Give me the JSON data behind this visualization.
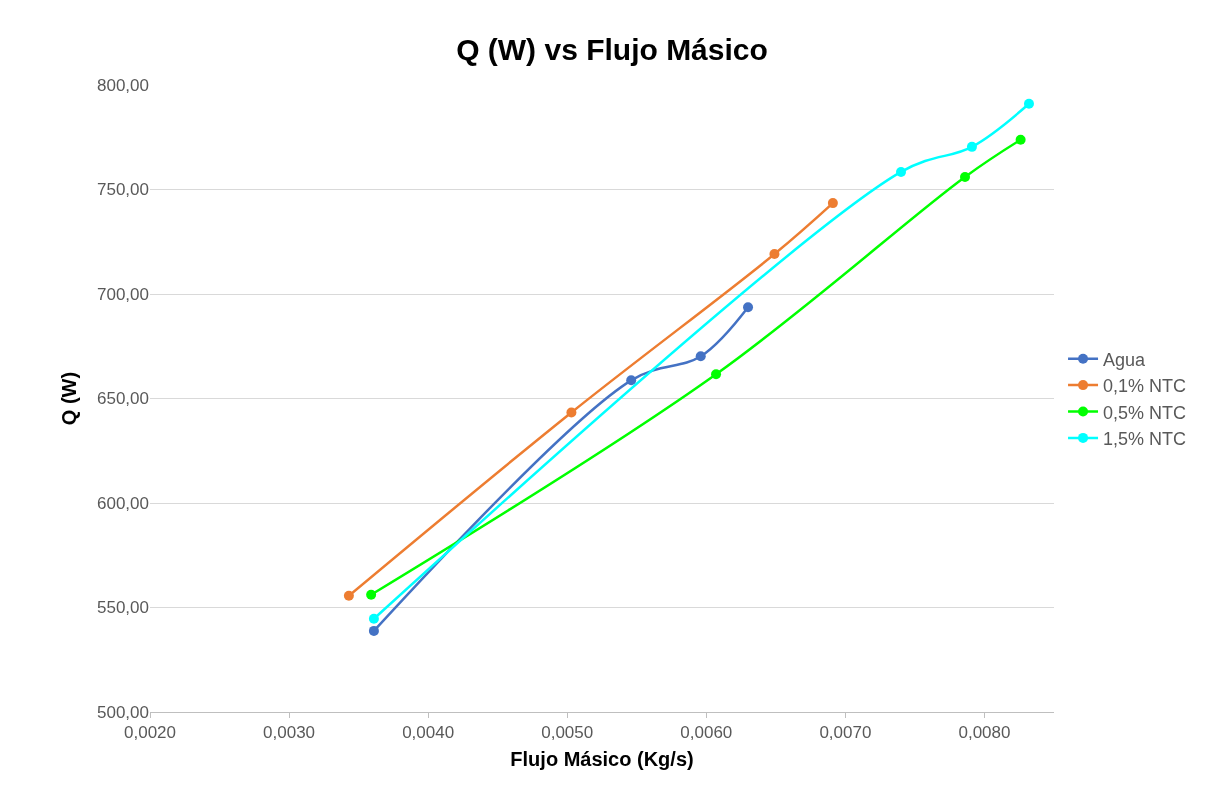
{
  "chart_data": {
    "type": "line",
    "title": "Q (W) vs Flujo Másico",
    "xlabel": "Flujo Másico (Kg/s)",
    "ylabel": "Q (W)",
    "xlim": [
      0.002,
      0.0085
    ],
    "xticks": [
      {
        "value": 0.002,
        "label": "0,0020"
      },
      {
        "value": 0.003,
        "label": "0,0030"
      },
      {
        "value": 0.004,
        "label": "0,0040"
      },
      {
        "value": 0.005,
        "label": "0,0050"
      },
      {
        "value": 0.006,
        "label": "0,0060"
      },
      {
        "value": 0.007,
        "label": "0,0070"
      },
      {
        "value": 0.008,
        "label": "0,0080"
      }
    ],
    "ylim": [
      500,
      800
    ],
    "yticks": [
      {
        "value": 500,
        "label": "500,00"
      },
      {
        "value": 550,
        "label": "550,00"
      },
      {
        "value": 600,
        "label": "600,00"
      },
      {
        "value": 650,
        "label": "650,00"
      },
      {
        "value": 700,
        "label": "700,00"
      },
      {
        "value": 750,
        "label": "750,00"
      },
      {
        "value": 800,
        "label": "800,00"
      }
    ],
    "grid": "y",
    "legend": "right",
    "marker": "circle",
    "series": [
      {
        "name": "Agua",
        "color": "#4472c4",
        "x": [
          0.00361,
          0.00546,
          0.00596,
          0.0063
        ],
        "values": [
          538.8,
          658.7,
          670.2,
          693.7
        ]
      },
      {
        "name": "0,1% NTC",
        "color": "#ed7d31",
        "x": [
          0.00343,
          0.00503,
          0.00649,
          0.00691
        ],
        "values": [
          555.6,
          643.3,
          719.1,
          743.5
        ]
      },
      {
        "name": "0,5% NTC",
        "color": "#00ff00",
        "x": [
          0.00359,
          0.00607,
          0.00786,
          0.00826
        ],
        "values": [
          556.1,
          661.6,
          756.0,
          773.8
        ]
      },
      {
        "name": "1,5% NTC",
        "color": "#00ffff",
        "x": [
          0.00361,
          0.0074,
          0.00791,
          0.00832
        ],
        "values": [
          544.6,
          758.4,
          770.4,
          791.0
        ]
      }
    ]
  }
}
